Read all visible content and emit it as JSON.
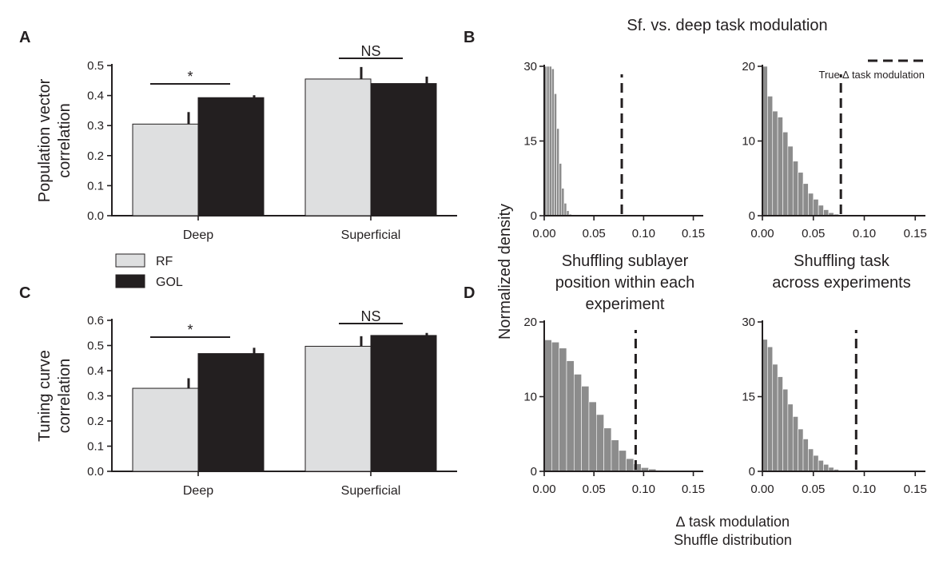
{
  "title": "Sf. vs. deep task modulation",
  "panel_letters": {
    "A": "A",
    "B": "B",
    "C": "C",
    "D": "D"
  },
  "legend": {
    "rf": "RF",
    "gol": "GOL",
    "rf_color": "#dedfe0",
    "gol_color": "#231f20"
  },
  "shared_labels": {
    "normalized_density": "Normalized density",
    "delta_task_modulation": "∆ task modulation",
    "shuffle_distribution": "Shuffle distribution",
    "true_delta": "True ∆ task modulation",
    "col1_title": [
      "Shuffling sublayer",
      "position within each",
      "experiment"
    ],
    "col2_title": [
      "Shuffling task",
      "across experiments"
    ]
  },
  "chart_data": [
    {
      "id": "A",
      "type": "bar",
      "ylabel": [
        "Population vector",
        "correlation"
      ],
      "categories": [
        "Deep",
        "Superficial"
      ],
      "ylim": [
        0,
        0.5
      ],
      "yticks": [
        "0.0",
        "0.1",
        "0.2",
        "0.3",
        "0.4",
        "0.5"
      ],
      "series": [
        {
          "name": "RF",
          "values": [
            0.305,
            0.455
          ],
          "errors": [
            0.04,
            0.04
          ]
        },
        {
          "name": "GOL",
          "values": [
            0.393,
            0.44
          ],
          "errors": [
            0.008,
            0.023
          ]
        }
      ],
      "significance": [
        "*",
        "NS"
      ]
    },
    {
      "id": "C",
      "type": "bar",
      "ylabel": [
        "Tuning curve",
        "correlation"
      ],
      "categories": [
        "Deep",
        "Superficial"
      ],
      "ylim": [
        0,
        0.6
      ],
      "yticks": [
        "0.0",
        "0.1",
        "0.2",
        "0.3",
        "0.4",
        "0.5",
        "0.6"
      ],
      "series": [
        {
          "name": "RF",
          "values": [
            0.33,
            0.497
          ],
          "errors": [
            0.04,
            0.04
          ]
        },
        {
          "name": "GOL",
          "values": [
            0.468,
            0.54
          ],
          "errors": [
            0.023,
            0.01
          ]
        }
      ],
      "significance": [
        "*",
        "NS"
      ]
    },
    {
      "id": "B-left",
      "type": "histogram",
      "xlim": [
        0,
        0.16
      ],
      "ylim": [
        0,
        30
      ],
      "xticks": [
        "0.00",
        "0.05",
        "0.10",
        "0.15"
      ],
      "yticks": [
        "0",
        "15",
        "30"
      ],
      "bin_width": 0.0025,
      "values": [
        30,
        30,
        30,
        29.5,
        24.5,
        17.5,
        10.5,
        5.5,
        2.5,
        1.0,
        0.3
      ],
      "true_value": 0.078
    },
    {
      "id": "B-right",
      "type": "histogram",
      "xlim": [
        0,
        0.16
      ],
      "ylim": [
        0,
        20
      ],
      "xticks": [
        "0.00",
        "0.05",
        "0.10",
        "0.15"
      ],
      "yticks": [
        "0",
        "10",
        "20"
      ],
      "bin_width": 0.005,
      "values": [
        20,
        16,
        14,
        13.2,
        11.2,
        9.3,
        7.3,
        5.8,
        4.3,
        3.0,
        2.2,
        1.4,
        0.8,
        0.4,
        0.2,
        0.1
      ],
      "true_value": 0.077
    },
    {
      "id": "D-left",
      "type": "histogram",
      "xlim": [
        0,
        0.16
      ],
      "ylim": [
        0,
        20
      ],
      "xticks": [
        "0.00",
        "0.05",
        "0.10",
        "0.15"
      ],
      "yticks": [
        "0",
        "10",
        "20"
      ],
      "bin_width": 0.0075,
      "values": [
        17.6,
        17.3,
        16.5,
        14.8,
        13,
        11.4,
        9.3,
        7.6,
        5.8,
        4.2,
        2.8,
        1.7,
        1.0,
        0.5,
        0.3,
        0.15,
        0.05
      ],
      "true_value": 0.092
    },
    {
      "id": "D-right",
      "type": "histogram",
      "xlim": [
        0,
        0.16
      ],
      "ylim": [
        0,
        30
      ],
      "xticks": [
        "0.00",
        "0.05",
        "0.10",
        "0.15"
      ],
      "yticks": [
        "0",
        "15",
        "30"
      ],
      "bin_width": 0.005,
      "values": [
        26.5,
        25,
        21.5,
        19,
        16.5,
        13.5,
        11,
        8.5,
        6.5,
        4.5,
        3.2,
        2.2,
        1.4,
        0.8,
        0.4,
        0.2,
        0.1
      ],
      "true_value": 0.092
    }
  ]
}
